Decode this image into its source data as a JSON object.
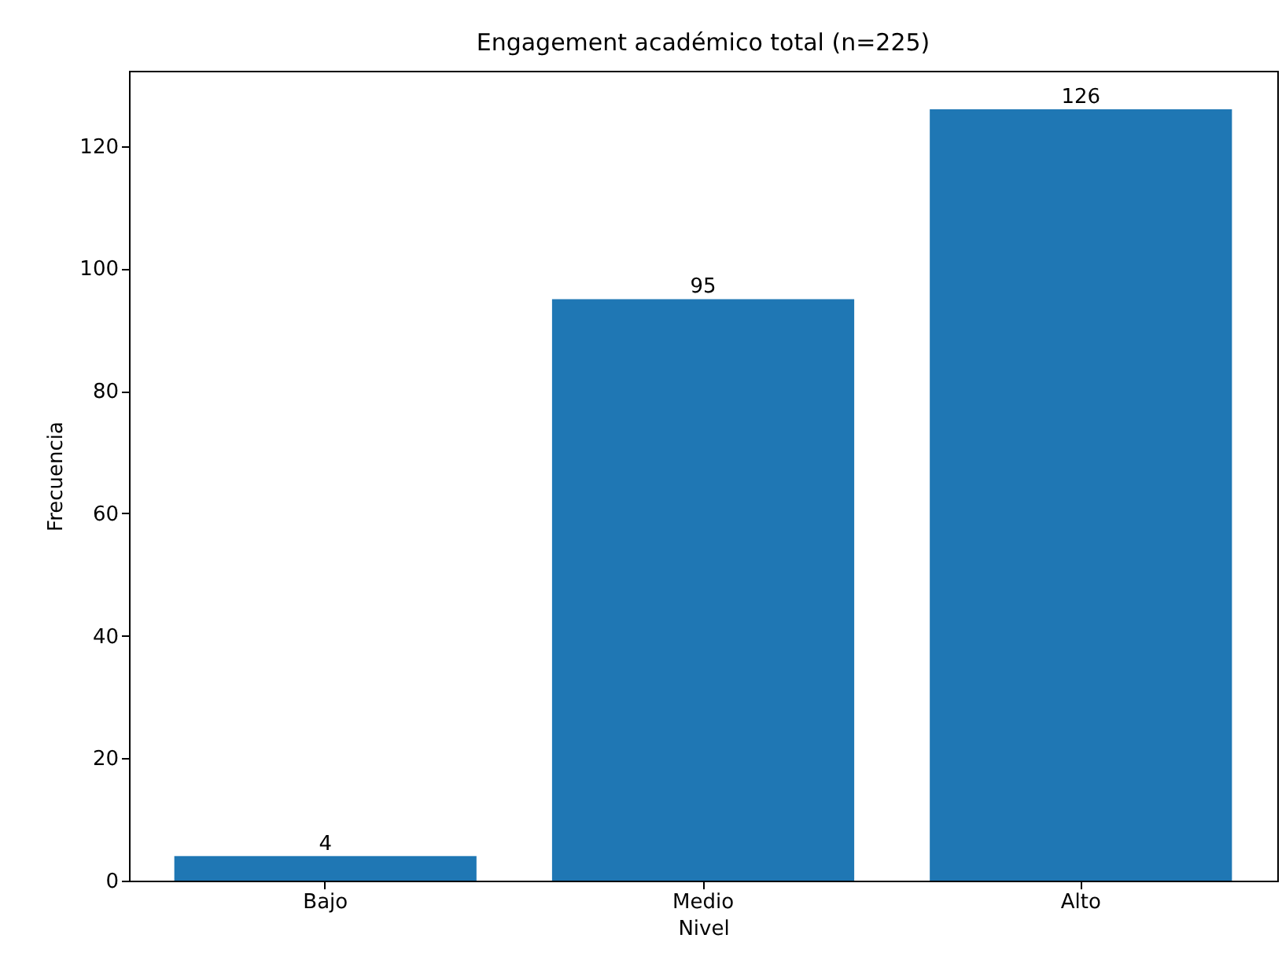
{
  "chart_data": {
    "type": "bar",
    "title": "Engagement académico total (n=225)",
    "xlabel": "Nivel",
    "ylabel": "Frecuencia",
    "categories": [
      "Bajo",
      "Medio",
      "Alto"
    ],
    "values": [
      4,
      95,
      126
    ],
    "color": "#1f77b4",
    "ylim": [
      0,
      132.3
    ],
    "yticks": [
      0,
      20,
      40,
      60,
      80,
      100,
      120
    ],
    "grid": false,
    "data_labels": true
  }
}
